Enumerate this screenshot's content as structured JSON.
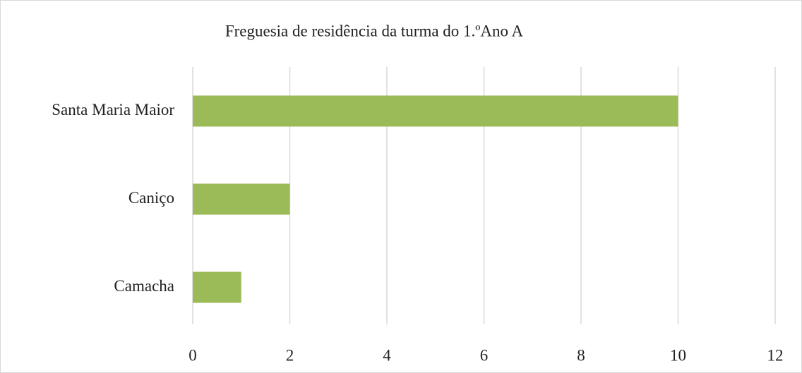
{
  "chart_data": {
    "type": "bar",
    "orientation": "horizontal",
    "title": "Freguesia de residência da turma do 1.ºAno A",
    "categories": [
      "Santa Maria Maior",
      "Caniço",
      "Camacha"
    ],
    "values": [
      10,
      2,
      1
    ],
    "color": "#9bbb59",
    "xlim": [
      0,
      12
    ],
    "xticks": [
      0,
      2,
      4,
      6,
      8,
      10,
      12
    ],
    "grid": true
  }
}
